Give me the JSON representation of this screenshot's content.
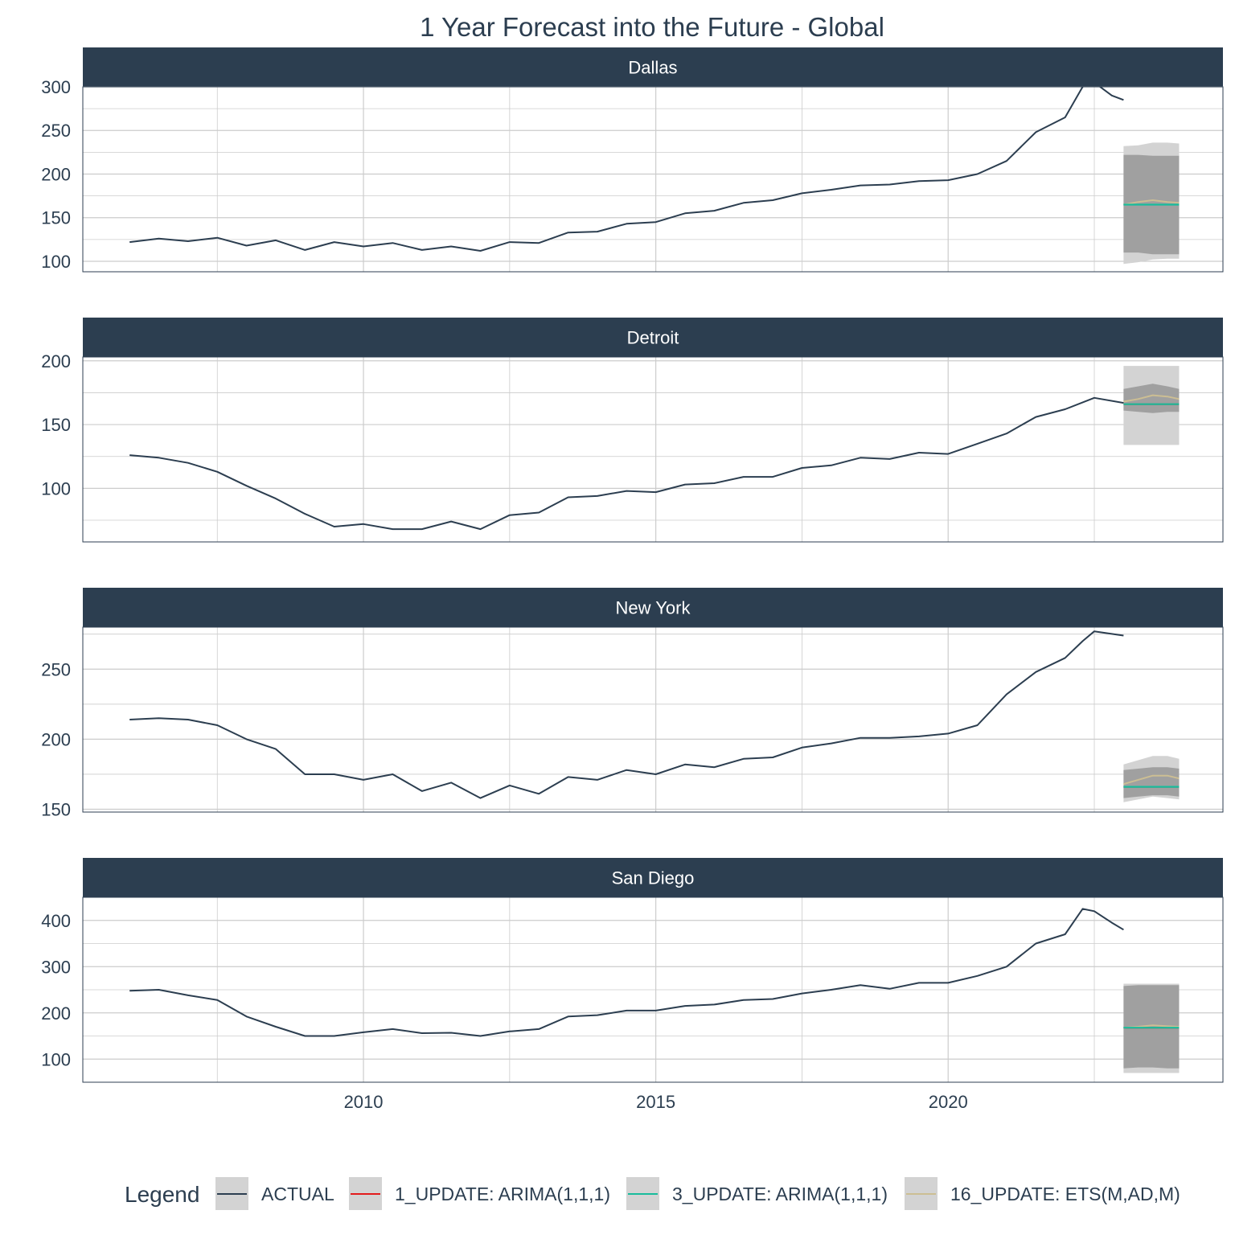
{
  "chart_data": {
    "type": "line",
    "title": "1 Year Forecast into the Future - Global",
    "xlabel": "",
    "ylabel": "",
    "x_ticks": [
      2010,
      2015,
      2020
    ],
    "xlim": [
      2005.2,
      2024.7
    ],
    "grid": true,
    "legend_placement": "bottom",
    "legend": {
      "title": "Legend",
      "entries": [
        {
          "label": "ACTUAL",
          "color": "#2c3e50"
        },
        {
          "label": "1_UPDATE: ARIMA(1,1,1)",
          "color": "#e31a1c"
        },
        {
          "label": "3_UPDATE: ARIMA(1,1,1)",
          "color": "#18bc9c"
        },
        {
          "label": "16_UPDATE: ETS(M,AD,M)",
          "color": "#ccbe93"
        }
      ]
    },
    "colors": {
      "strip": "#2c3e50",
      "strip_text": "#ffffff",
      "axis_text": "#2c3e50",
      "grid": "#cccccc",
      "ci_outer": "#d3d3d3",
      "ci_inner": "#a0a0a0"
    },
    "panels": [
      {
        "name": "Dallas",
        "ylim": [
          88,
          300
        ],
        "y_ticks": [
          100,
          150,
          200,
          250,
          300
        ],
        "actual": {
          "x": [
            2006.0,
            2006.5,
            2007.0,
            2007.5,
            2008.0,
            2008.5,
            2009.0,
            2009.5,
            2010.0,
            2010.5,
            2011.0,
            2011.5,
            2012.0,
            2012.5,
            2013.0,
            2013.5,
            2014.0,
            2014.5,
            2015.0,
            2015.5,
            2016.0,
            2016.5,
            2017.0,
            2017.5,
            2018.0,
            2018.5,
            2019.0,
            2019.5,
            2020.0,
            2020.5,
            2021.0,
            2021.5,
            2022.0,
            2022.3,
            2022.5,
            2022.8,
            2023.0
          ],
          "y": [
            122,
            126,
            123,
            127,
            118,
            124,
            113,
            122,
            117,
            121,
            113,
            117,
            112,
            122,
            121,
            133,
            134,
            143,
            145,
            155,
            158,
            167,
            170,
            178,
            182,
            187,
            188,
            192,
            193,
            200,
            215,
            248,
            265,
            300,
            305,
            290,
            285
          ]
        },
        "forecast": {
          "x": [
            2023.0,
            2023.25,
            2023.5,
            2023.75,
            2023.95
          ],
          "arima_1": [
            165,
            165,
            165,
            165,
            165
          ],
          "arima_3": [
            165,
            165,
            165,
            165,
            165
          ],
          "ets": [
            165,
            168,
            170,
            168,
            167
          ],
          "ci_outer_lo": [
            97,
            99,
            102,
            103,
            103
          ],
          "ci_outer_hi": [
            232,
            233,
            236,
            236,
            235
          ],
          "ci_inner_lo": [
            110,
            110,
            108,
            108,
            108
          ],
          "ci_inner_hi": [
            222,
            222,
            221,
            221,
            221
          ]
        }
      },
      {
        "name": "Detroit",
        "ylim": [
          58,
          203
        ],
        "y_ticks": [
          100,
          150,
          200
        ],
        "actual": {
          "x": [
            2006.0,
            2006.5,
            2007.0,
            2007.5,
            2008.0,
            2008.5,
            2009.0,
            2009.5,
            2010.0,
            2010.5,
            2011.0,
            2011.5,
            2012.0,
            2012.5,
            2013.0,
            2013.5,
            2014.0,
            2014.5,
            2015.0,
            2015.5,
            2016.0,
            2016.5,
            2017.0,
            2017.5,
            2018.0,
            2018.5,
            2019.0,
            2019.5,
            2020.0,
            2020.5,
            2021.0,
            2021.5,
            2022.0,
            2022.5,
            2023.0
          ],
          "y": [
            126,
            124,
            120,
            113,
            102,
            92,
            80,
            70,
            72,
            68,
            68,
            74,
            68,
            79,
            81,
            93,
            94,
            98,
            97,
            103,
            104,
            109,
            109,
            116,
            118,
            124,
            123,
            128,
            127,
            135,
            143,
            156,
            162,
            171,
            167
          ]
        },
        "forecast": {
          "x": [
            2023.0,
            2023.25,
            2023.5,
            2023.75,
            2023.95
          ],
          "arima_1": [
            166,
            166,
            166,
            166,
            166
          ],
          "arima_3": [
            166,
            166,
            166,
            166,
            166
          ],
          "ets": [
            168,
            170,
            173,
            172,
            170
          ],
          "ci_outer_lo": [
            134,
            134,
            134,
            134,
            134
          ],
          "ci_outer_hi": [
            196,
            196,
            196,
            196,
            196
          ],
          "ci_inner_lo": [
            161,
            160,
            159,
            160,
            160
          ],
          "ci_inner_hi": [
            178,
            180,
            182,
            180,
            178
          ]
        }
      },
      {
        "name": "New York",
        "ylim": [
          148,
          280
        ],
        "y_ticks": [
          150,
          200,
          250
        ],
        "actual": {
          "x": [
            2006.0,
            2006.5,
            2007.0,
            2007.5,
            2008.0,
            2008.5,
            2009.0,
            2009.5,
            2010.0,
            2010.5,
            2011.0,
            2011.5,
            2012.0,
            2012.5,
            2013.0,
            2013.5,
            2014.0,
            2014.5,
            2015.0,
            2015.5,
            2016.0,
            2016.5,
            2017.0,
            2017.5,
            2018.0,
            2018.5,
            2019.0,
            2019.5,
            2020.0,
            2020.5,
            2021.0,
            2021.5,
            2022.0,
            2022.3,
            2022.5,
            2023.0
          ],
          "y": [
            214,
            215,
            214,
            210,
            200,
            193,
            175,
            175,
            171,
            175,
            163,
            169,
            158,
            167,
            161,
            173,
            171,
            178,
            175,
            182,
            180,
            186,
            187,
            194,
            197,
            201,
            201,
            202,
            204,
            210,
            232,
            248,
            258,
            270,
            277,
            274
          ]
        },
        "forecast": {
          "x": [
            2023.0,
            2023.25,
            2023.5,
            2023.75,
            2023.95
          ],
          "arima_1": [
            166,
            166,
            166,
            166,
            166
          ],
          "arima_3": [
            166,
            166,
            166,
            166,
            166
          ],
          "ets": [
            168,
            171,
            174,
            174,
            172
          ],
          "ci_outer_lo": [
            155,
            157,
            159,
            158,
            157
          ],
          "ci_outer_hi": [
            182,
            185,
            188,
            188,
            186
          ],
          "ci_inner_lo": [
            158,
            159,
            160,
            160,
            159
          ],
          "ci_inner_hi": [
            178,
            179,
            180,
            180,
            179
          ]
        }
      },
      {
        "name": "San Diego",
        "ylim": [
          50,
          450
        ],
        "y_ticks": [
          100,
          200,
          300,
          400
        ],
        "actual": {
          "x": [
            2006.0,
            2006.5,
            2007.0,
            2007.5,
            2008.0,
            2008.5,
            2009.0,
            2009.5,
            2010.0,
            2010.5,
            2011.0,
            2011.5,
            2012.0,
            2012.5,
            2013.0,
            2013.5,
            2014.0,
            2014.5,
            2015.0,
            2015.5,
            2016.0,
            2016.5,
            2017.0,
            2017.5,
            2018.0,
            2018.5,
            2019.0,
            2019.5,
            2020.0,
            2020.5,
            2021.0,
            2021.5,
            2022.0,
            2022.3,
            2022.5,
            2022.8,
            2023.0
          ],
          "y": [
            248,
            250,
            238,
            228,
            192,
            170,
            150,
            150,
            158,
            165,
            156,
            157,
            150,
            160,
            165,
            192,
            195,
            205,
            205,
            215,
            218,
            228,
            230,
            242,
            250,
            260,
            252,
            265,
            265,
            280,
            300,
            350,
            370,
            425,
            420,
            395,
            380
          ]
        },
        "forecast": {
          "x": [
            2023.0,
            2023.25,
            2023.5,
            2023.75,
            2023.95
          ],
          "arima_1": [
            168,
            168,
            168,
            168,
            168
          ],
          "arima_3": [
            168,
            168,
            168,
            168,
            168
          ],
          "ets": [
            168,
            170,
            173,
            171,
            170
          ],
          "ci_outer_lo": [
            70,
            70,
            70,
            70,
            70
          ],
          "ci_outer_hi": [
            263,
            263,
            263,
            263,
            263
          ],
          "ci_inner_lo": [
            80,
            82,
            82,
            80,
            80
          ],
          "ci_inner_hi": [
            258,
            260,
            260,
            260,
            260
          ]
        }
      }
    ]
  }
}
